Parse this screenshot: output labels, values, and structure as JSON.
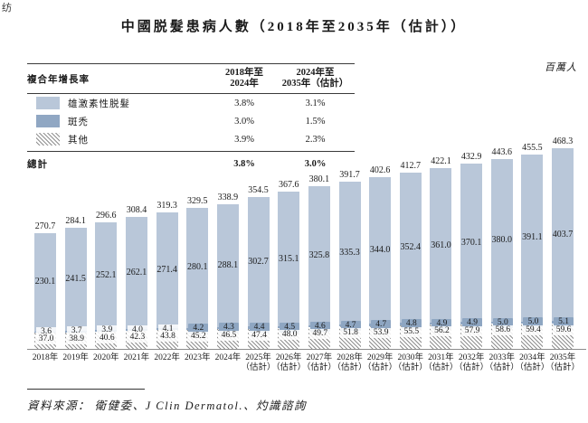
{
  "corner_artifact": "纺",
  "title": "中國脱髮患病人數（2018年至2035年（估計））",
  "unit_label": "百萬人",
  "cagr_table": {
    "header": {
      "label": "複合年增長率",
      "col1_line1": "2018年至",
      "col1_line2": "2024年",
      "col2_line1": "2024年至",
      "col2_line2": "2035年（估計）"
    },
    "rows": [
      {
        "name": "雄激素性脱髮",
        "cagr_2018_2024": "3.8%",
        "cagr_2024_2035": "3.1%"
      },
      {
        "name": "斑禿",
        "cagr_2018_2024": "3.0%",
        "cagr_2024_2035": "1.5%"
      },
      {
        "name": "其他",
        "cagr_2018_2024": "3.9%",
        "cagr_2024_2035": "2.3%"
      }
    ],
    "total": {
      "label": "總計",
      "cagr_2018_2024": "3.8%",
      "cagr_2024_2035": "3.0%"
    }
  },
  "source": "資料來源： 衛健委、J Clin Dermatol.、灼識諮詢",
  "colors": {
    "androgenetic": "#b9c7d9",
    "areata": "#90a7c3",
    "hatch_line": "#8f8f8f",
    "axis": "#8c8c8c",
    "text": "#1a1a1a"
  },
  "chart_data": {
    "type": "bar",
    "stacked": true,
    "title": "中國脱髮患病人數（2018年至2035年（估計））",
    "ylabel": "百萬人",
    "legend_position": "top-left-table",
    "grid": false,
    "categories": [
      "2018年",
      "2019年",
      "2020年",
      "2021年",
      "2022年",
      "2023年",
      "2024年",
      "2025年",
      "2026年",
      "2027年",
      "2028年",
      "2029年",
      "2030年",
      "2031年",
      "2032年",
      "2033年",
      "2034年",
      "2035年"
    ],
    "estimate_start_index": 7,
    "estimate_suffix": "（估計）",
    "series": [
      {
        "name": "雄激素性脱髮",
        "values": [
          230.1,
          241.5,
          252.1,
          262.1,
          271.4,
          280.1,
          288.1,
          302.7,
          315.1,
          325.8,
          335.3,
          344.0,
          352.4,
          361.0,
          370.1,
          380.0,
          391.1,
          403.7
        ]
      },
      {
        "name": "斑禿",
        "values": [
          3.6,
          3.7,
          3.9,
          4.0,
          4.1,
          4.2,
          4.3,
          4.4,
          4.5,
          4.6,
          4.7,
          4.7,
          4.8,
          4.9,
          4.9,
          5.0,
          5.0,
          5.1
        ]
      },
      {
        "name": "其他",
        "values": [
          37.0,
          38.9,
          40.6,
          42.3,
          43.8,
          45.2,
          46.5,
          47.4,
          48.0,
          49.7,
          51.8,
          53.9,
          55.5,
          56.2,
          57.9,
          58.6,
          59.4,
          59.6
        ]
      }
    ],
    "totals": [
      270.7,
      284.1,
      296.6,
      308.4,
      319.3,
      329.5,
      338.9,
      354.5,
      367.6,
      380.1,
      391.7,
      402.6,
      412.7,
      422.1,
      432.9,
      443.6,
      455.5,
      468.3
    ]
  }
}
